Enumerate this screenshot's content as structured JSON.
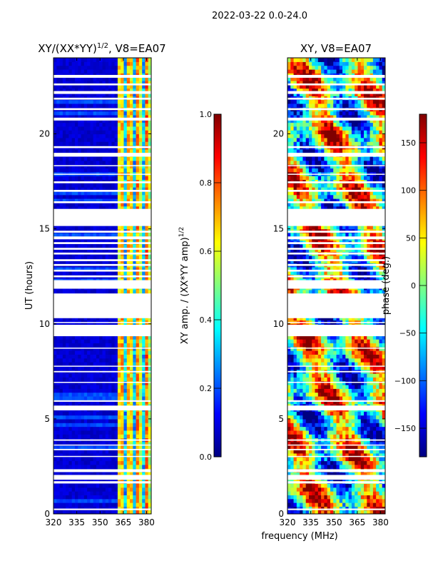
{
  "header": {
    "date_range": "2022-03-22 0.0-24.0"
  },
  "colors": {
    "jet": [
      "#000080",
      "#0000ff",
      "#0080ff",
      "#00ffff",
      "#80ff80",
      "#ffff00",
      "#ff8000",
      "#ff0000",
      "#800000"
    ],
    "gap": "#ffffff"
  },
  "chart_data": [
    {
      "type": "heatmap",
      "title_main": "XY/(XX*YY)",
      "title_exp": "1/2",
      "title_suffix": ", V8=EA07",
      "xlabel": "",
      "ylabel": "UT (hours)",
      "xlim": [
        320,
        383
      ],
      "ylim": [
        0,
        24
      ],
      "xticks": [
        "320",
        "335",
        "350",
        "365",
        "380"
      ],
      "xtick_values": [
        320,
        335,
        350,
        365,
        380
      ],
      "yticks": [
        "0",
        "5",
        "10",
        "15",
        "20"
      ],
      "ytick_values": [
        0,
        5,
        10,
        15,
        20
      ],
      "colorbar": {
        "label_main": "XY amp. / (XX*YY amp)",
        "label_exp": "1/2",
        "range": [
          0,
          1
        ],
        "ticks": [
          "0.0",
          "0.2",
          "0.4",
          "0.6",
          "0.8",
          "1.0"
        ],
        "tick_values": [
          0,
          0.2,
          0.4,
          0.6,
          0.8,
          1.0
        ]
      },
      "description": "mostly low amplitude (~0.05) below 361 MHz, high amplitude stripes 361-383 MHz",
      "low_band_value": 0.05,
      "high_band_start_mhz": 361,
      "high_band_value": 0.55
    },
    {
      "type": "heatmap",
      "title_main": "XY, V8=EA07",
      "xlabel": "frequency (MHz)",
      "ylabel": "",
      "xlim": [
        320,
        383
      ],
      "ylim": [
        0,
        24
      ],
      "xticks": [
        "320",
        "335",
        "350",
        "365",
        "380"
      ],
      "xtick_values": [
        320,
        335,
        350,
        365,
        380
      ],
      "yticks": [
        "0",
        "5",
        "10",
        "15",
        "20"
      ],
      "ytick_values": [
        0,
        5,
        10,
        15,
        20
      ],
      "colorbar": {
        "label_main": "phase (deg.)",
        "range": [
          -180,
          180
        ],
        "ticks": [
          "−150",
          "−100",
          "−50",
          "0",
          "50",
          "100",
          "150"
        ],
        "tick_values": [
          -150,
          -100,
          -50,
          0,
          50,
          100,
          150
        ]
      },
      "description": "phase varies widely from -180 to 180 degrees"
    }
  ],
  "gaps_hours": [
    [
      0.2,
      0.28
    ],
    [
      1.6,
      1.72
    ],
    [
      1.8,
      2.05
    ],
    [
      2.2,
      2.35
    ],
    [
      3.0,
      3.05
    ],
    [
      3.35,
      3.42
    ],
    [
      3.6,
      3.65
    ],
    [
      3.85,
      3.92
    ],
    [
      5.45,
      5.7
    ],
    [
      5.9,
      5.98
    ],
    [
      6.9,
      6.95
    ],
    [
      7.45,
      7.52
    ],
    [
      7.75,
      7.8
    ],
    [
      8.7,
      8.75
    ],
    [
      9.35,
      9.95
    ],
    [
      10.05,
      10.1
    ],
    [
      10.3,
      11.6
    ],
    [
      11.85,
      12.3
    ],
    [
      12.45,
      12.55
    ],
    [
      12.75,
      12.85
    ],
    [
      13.05,
      13.15
    ],
    [
      13.3,
      13.4
    ],
    [
      13.65,
      13.75
    ],
    [
      13.9,
      14.0
    ],
    [
      14.2,
      14.3
    ],
    [
      14.45,
      14.6
    ],
    [
      14.8,
      14.9
    ],
    [
      15.15,
      16.05
    ],
    [
      16.35,
      16.45
    ],
    [
      16.95,
      17.05
    ],
    [
      17.4,
      17.5
    ],
    [
      17.85,
      17.9
    ],
    [
      18.3,
      18.35
    ],
    [
      18.8,
      19.0
    ],
    [
      19.25,
      19.35
    ],
    [
      20.7,
      20.85
    ],
    [
      21.25,
      21.35
    ],
    [
      21.8,
      21.9
    ],
    [
      22.1,
      22.25
    ],
    [
      22.55,
      22.65
    ],
    [
      22.95,
      23.1
    ]
  ]
}
